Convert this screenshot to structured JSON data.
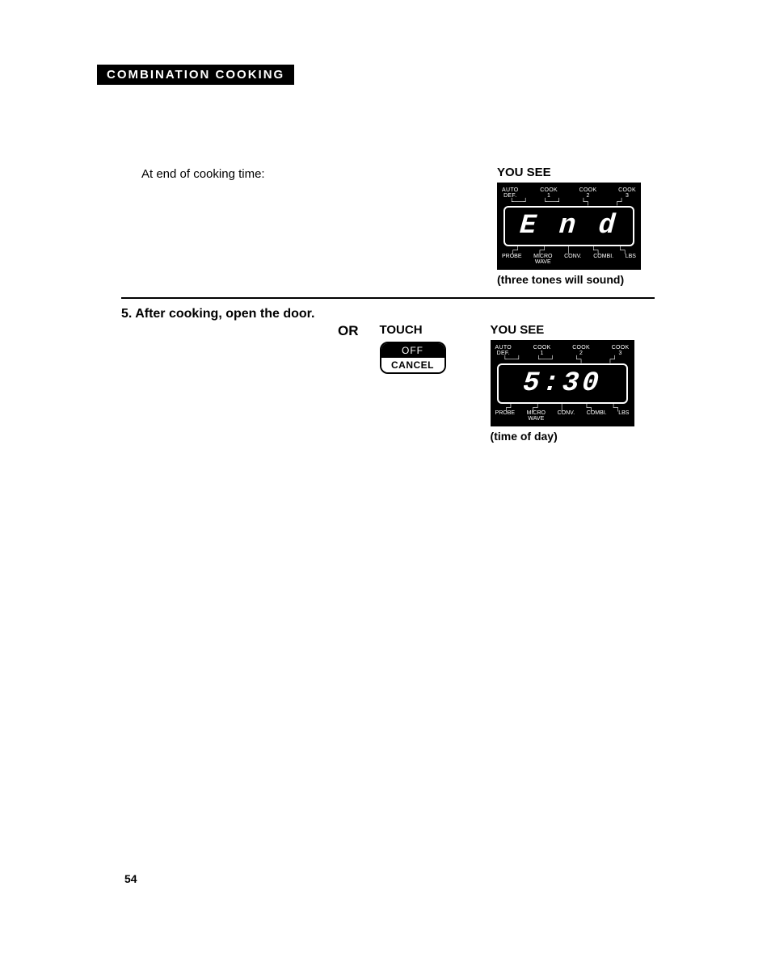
{
  "section_header": "COMBINATION COOKING",
  "row1_left": "At end of cooking time:",
  "you_see": "YOU SEE",
  "display_top_labels": [
    {
      "l1": "AUTO",
      "l2": "DEF."
    },
    {
      "l1": "COOK",
      "l2": "1"
    },
    {
      "l1": "COOK",
      "l2": "2"
    },
    {
      "l1": "COOK",
      "l2": "3"
    }
  ],
  "display_bottom_labels": [
    {
      "l1": "PROBE",
      "l2": ""
    },
    {
      "l1": "MICRO",
      "l2": "WAVE"
    },
    {
      "l1": "CONV.",
      "l2": ""
    },
    {
      "l1": "COMBI.",
      "l2": ""
    },
    {
      "l1": "LBS",
      "l2": ""
    }
  ],
  "screen1_text": "E n d",
  "caption1": "(three tones will sound)",
  "step5_title": "5. After cooking, open the door.",
  "or": "OR",
  "touch": "TOUCH",
  "off_top": "OFF",
  "off_bot": "CANCEL",
  "screen2_text": "5:30",
  "caption2": "(time of day)",
  "page_num": "54",
  "colors": {
    "black": "#000000",
    "white": "#ffffff"
  }
}
